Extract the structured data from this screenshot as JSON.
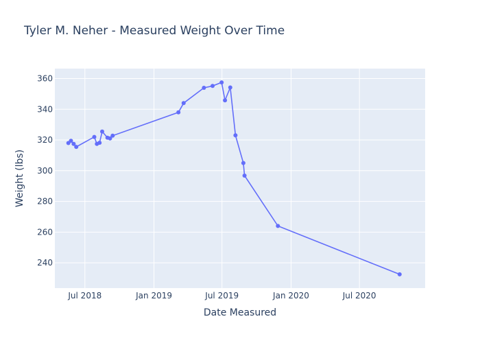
{
  "chart_data": {
    "type": "line",
    "title": "Tyler M. Neher - Measured Weight Over Time",
    "xlabel": "Date Measured",
    "ylabel": "Weight (lbs)",
    "xlim": [
      "2018-04-12",
      "2020-12-23"
    ],
    "ylim": [
      223.5,
      366.5
    ],
    "x_ticks": [
      {
        "date": "2018-07-01",
        "label": "Jul 2018"
      },
      {
        "date": "2019-01-01",
        "label": "Jan 2019"
      },
      {
        "date": "2019-07-01",
        "label": "Jul 2019"
      },
      {
        "date": "2020-01-01",
        "label": "Jan 2020"
      },
      {
        "date": "2020-07-01",
        "label": "Jul 2020"
      }
    ],
    "y_ticks": [
      240,
      260,
      280,
      300,
      320,
      340,
      360
    ],
    "grid": true,
    "colors": {
      "line": "#636efa",
      "plot_bg": "#e5ecf6",
      "text": "#2a3f5f"
    },
    "series": [
      {
        "x": [
          "2018-05-18",
          "2018-05-25",
          "2018-06-01",
          "2018-06-08",
          "2018-07-26",
          "2018-08-02",
          "2018-08-09",
          "2018-08-16",
          "2018-08-30",
          "2018-09-06",
          "2018-09-13",
          "2019-03-07",
          "2019-03-21",
          "2019-05-14",
          "2019-06-06",
          "2019-06-30",
          "2019-07-09",
          "2019-07-23",
          "2019-08-06",
          "2019-08-27",
          "2019-08-30",
          "2019-11-27",
          "2020-10-16"
        ],
        "y": [
          318,
          319.5,
          317.5,
          315.5,
          322,
          317.5,
          318.2,
          325.5,
          321.5,
          321,
          322.8,
          338,
          344,
          354,
          355.2,
          357.5,
          345.8,
          354.2,
          323,
          305,
          296.8,
          264,
          232.5
        ]
      }
    ]
  }
}
